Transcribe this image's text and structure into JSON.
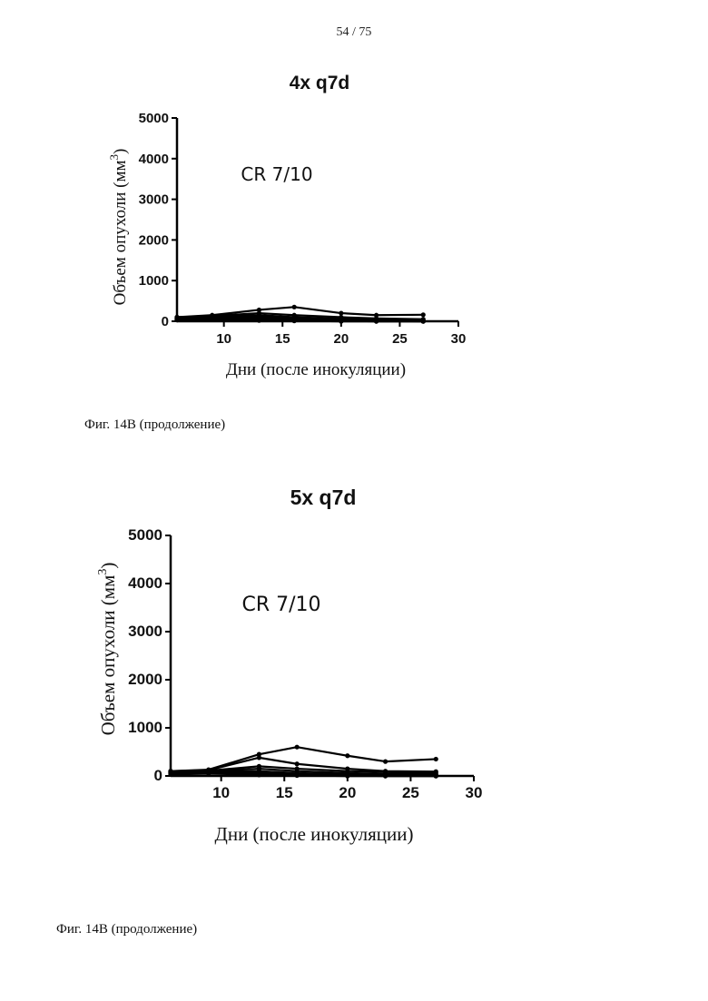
{
  "page": {
    "number": "54 / 75"
  },
  "captions": [
    "Фиг. 14В (продолжение)",
    "Фиг. 14В (продолжение)"
  ],
  "chart_data": [
    {
      "type": "line",
      "title": "4x q7d",
      "annotation": "CR 7/10",
      "xlabel": "Дни (после инокуляции)",
      "ylabel": "Объем опухоли (мм",
      "ylabel_sup": "3",
      "ylabel_close": ")",
      "xlim": [
        6,
        30
      ],
      "ylim": [
        0,
        5000
      ],
      "xticks": [
        10,
        15,
        20,
        25,
        30
      ],
      "yticks": [
        0,
        1000,
        2000,
        3000,
        4000,
        5000
      ],
      "x": [
        6,
        9,
        13,
        16,
        20,
        23,
        27
      ],
      "series": [
        {
          "values": [
            100,
            150,
            280,
            350,
            200,
            150,
            160
          ]
        },
        {
          "values": [
            100,
            130,
            200,
            150,
            100,
            70,
            50
          ]
        },
        {
          "values": [
            90,
            120,
            150,
            100,
            60,
            40,
            20
          ]
        },
        {
          "values": [
            80,
            100,
            120,
            80,
            50,
            30,
            10
          ]
        },
        {
          "values": [
            70,
            90,
            80,
            60,
            30,
            10,
            0
          ]
        },
        {
          "values": [
            60,
            80,
            60,
            40,
            20,
            10,
            0
          ]
        },
        {
          "values": [
            50,
            70,
            40,
            20,
            10,
            0,
            0
          ]
        },
        {
          "values": [
            60,
            75,
            50,
            30,
            10,
            0,
            0
          ]
        },
        {
          "values": [
            40,
            60,
            30,
            10,
            0,
            0,
            0
          ]
        },
        {
          "values": [
            30,
            50,
            20,
            10,
            0,
            0,
            0
          ]
        }
      ]
    },
    {
      "type": "line",
      "title": "5x q7d",
      "annotation": "CR 7/10",
      "xlabel": "Дни (после инокуляции)",
      "ylabel": "Объем опухоли (мм",
      "ylabel_sup": "3",
      "ylabel_close": ")",
      "xlim": [
        6,
        30
      ],
      "ylim": [
        0,
        5000
      ],
      "xticks": [
        10,
        15,
        20,
        25,
        30
      ],
      "yticks": [
        0,
        1000,
        2000,
        3000,
        4000,
        5000
      ],
      "x": [
        6,
        9,
        13,
        16,
        20,
        23,
        27
      ],
      "series": [
        {
          "values": [
            100,
            130,
            450,
            600,
            420,
            300,
            350
          ]
        },
        {
          "values": [
            100,
            120,
            380,
            250,
            150,
            100,
            90
          ]
        },
        {
          "values": [
            90,
            110,
            200,
            150,
            100,
            80,
            60
          ]
        },
        {
          "values": [
            80,
            100,
            150,
            100,
            60,
            40,
            30
          ]
        },
        {
          "values": [
            70,
            90,
            100,
            60,
            30,
            20,
            10
          ]
        },
        {
          "values": [
            60,
            80,
            80,
            40,
            20,
            10,
            0
          ]
        },
        {
          "values": [
            50,
            70,
            60,
            30,
            10,
            0,
            0
          ]
        },
        {
          "values": [
            60,
            75,
            50,
            20,
            10,
            0,
            0
          ]
        },
        {
          "values": [
            40,
            60,
            30,
            10,
            0,
            0,
            0
          ]
        },
        {
          "values": [
            30,
            50,
            20,
            10,
            0,
            0,
            0
          ]
        }
      ]
    }
  ]
}
